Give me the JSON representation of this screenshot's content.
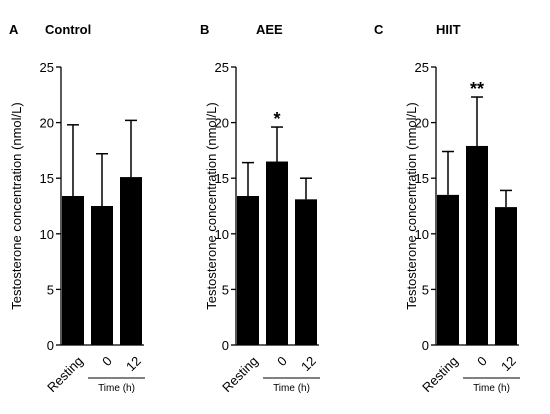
{
  "chart_data": [
    {
      "type": "bar",
      "panel": "A",
      "title": "Control",
      "ylabel": "Testosterone concentration  (nmol/L)",
      "ylim": [
        0,
        25
      ],
      "yticks": [
        0,
        5,
        10,
        15,
        20,
        25
      ],
      "categories": [
        "Resting",
        "0",
        "12"
      ],
      "group_label": "Time (h)",
      "series": [
        {
          "values": [
            13.4,
            12.5,
            15.1
          ],
          "errors": [
            6.4,
            4.7,
            5.1
          ]
        }
      ],
      "annotations": [
        "",
        "",
        ""
      ]
    },
    {
      "type": "bar",
      "panel": "B",
      "title": "AEE",
      "ylabel": "Testosterone concentration (nmol/L)",
      "ylim": [
        0,
        25
      ],
      "yticks": [
        0,
        5,
        10,
        15,
        20,
        25
      ],
      "categories": [
        "Resting",
        "0",
        "12"
      ],
      "group_label": "Time (h)",
      "series": [
        {
          "values": [
            13.4,
            16.5,
            13.1
          ],
          "errors": [
            3.0,
            3.1,
            1.9
          ]
        }
      ],
      "annotations": [
        "",
        "*",
        ""
      ]
    },
    {
      "type": "bar",
      "panel": "C",
      "title": "HIIT",
      "ylabel": "Testosterone concentration (nmol/L)",
      "ylim": [
        0,
        25
      ],
      "yticks": [
        0,
        5,
        10,
        15,
        20,
        25
      ],
      "categories": [
        "Resting",
        "0",
        "12"
      ],
      "group_label": "Time (h)",
      "series": [
        {
          "values": [
            13.5,
            17.9,
            12.4
          ],
          "errors": [
            3.9,
            4.4,
            1.5
          ]
        }
      ],
      "annotations": [
        "",
        "**",
        ""
      ]
    }
  ],
  "colors": {
    "bar": "#000000",
    "axis": "#000000"
  }
}
